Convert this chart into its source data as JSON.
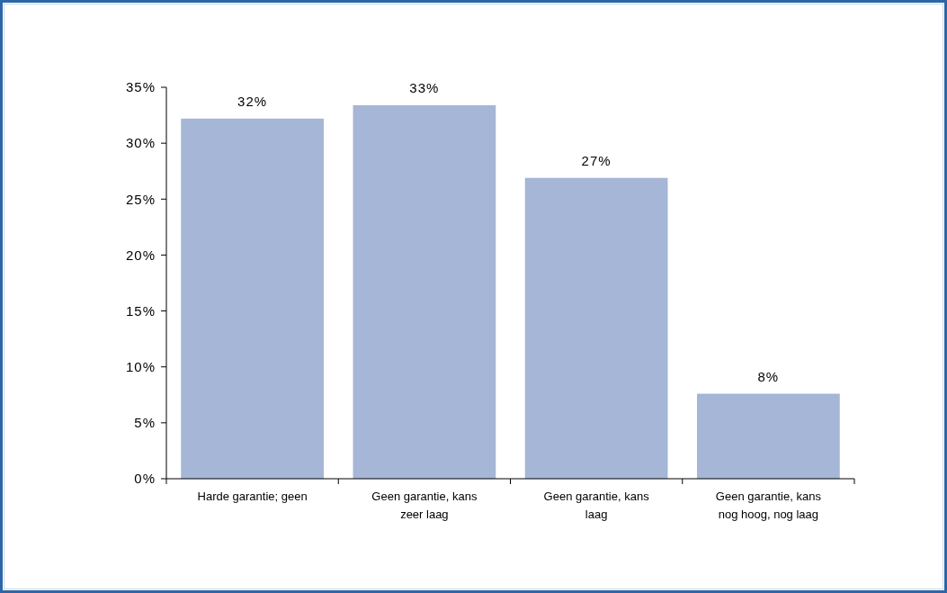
{
  "chart_data": {
    "type": "bar",
    "categories": [
      "Harde garantie; geen",
      "Geen garantie, kans zeer laag",
      "Geen garantie, kans laag",
      "Geen garantie, kans nog hoog, nog laag"
    ],
    "values": [
      32.2,
      33.4,
      26.9,
      7.6
    ],
    "value_labels": [
      "32%",
      "33%",
      "27%",
      "8%"
    ],
    "color": "#a5b6d6",
    "ylim": [
      0,
      35
    ],
    "yticks": [
      {
        "value": 0,
        "label": "0%"
      },
      {
        "value": 5,
        "label": "5%"
      },
      {
        "value": 10,
        "label": "10%"
      },
      {
        "value": 15,
        "label": "15%"
      },
      {
        "value": 20,
        "label": "20%"
      },
      {
        "value": 25,
        "label": "25%"
      },
      {
        "value": 30,
        "label": "30%"
      },
      {
        "value": 35,
        "label": "35%"
      }
    ]
  }
}
